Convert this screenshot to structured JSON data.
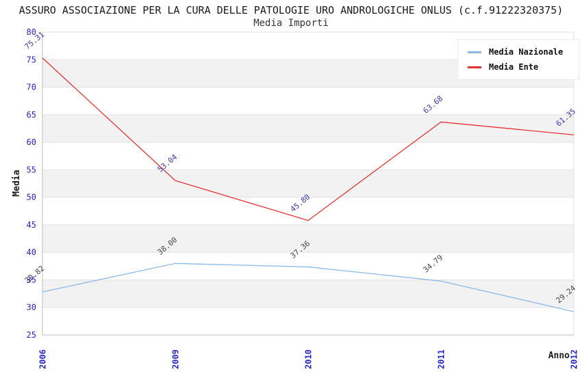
{
  "chart_data": {
    "type": "line",
    "title": "ASSURO ASSOCIAZIONE PER LA CURA DELLE PATOLOGIE URO ANDROLOGICHE ONLUS (c.f.91222320375)",
    "subtitle": "Media Importi",
    "xlabel": "Anno",
    "ylabel": "Media",
    "categories": [
      "2006",
      "2009",
      "2010",
      "2011",
      "2012"
    ],
    "series": [
      {
        "name": "Media Nazionale",
        "color": "#8cb8e6",
        "label_color": "#474747",
        "values": [
          32.82,
          38.0,
          37.36,
          34.79,
          29.24
        ]
      },
      {
        "name": "Media Ente",
        "color": "#e63232",
        "label_color": "#3a3aae",
        "values": [
          75.31,
          53.04,
          45.8,
          63.68,
          61.35
        ]
      }
    ],
    "ylim": [
      25,
      80
    ],
    "ytick_step": 5,
    "grid": "horizontal-bands",
    "legend_position": "top-right",
    "colors": {
      "tick_label": "#2626cc",
      "axis_label": "#1a1a1a",
      "band_gray": "#f2f2f2",
      "gridline": "#e2e2e2",
      "axis_line": "#bdbdbd",
      "background": "#ffffff"
    }
  }
}
